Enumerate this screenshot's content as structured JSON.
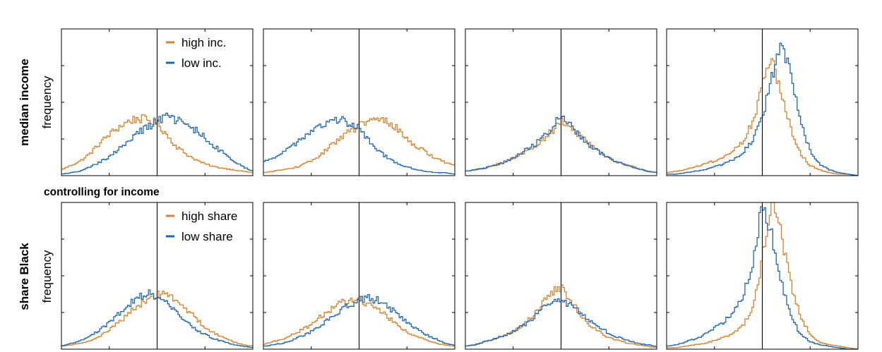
{
  "figure": {
    "row_labels": [
      "median income",
      "share Black"
    ],
    "ylabel": "frequency",
    "section_label": "controlling for income"
  },
  "colors": {
    "orange": "#D9822B",
    "blue": "#1F66B5",
    "axis": "#000000"
  },
  "chart_data": [
    {
      "type": "line",
      "title": "",
      "xlabel": "",
      "ylabel": "frequency",
      "row_label": "median income",
      "legend": {
        "placement": "top-right",
        "entries": [
          "high inc.",
          "low inc."
        ]
      },
      "xlim": [
        0,
        1
      ],
      "ylim": [
        0,
        1
      ],
      "vline": 0.5,
      "grid": false,
      "x": [
        0,
        0.05,
        0.1,
        0.15,
        0.2,
        0.25,
        0.3,
        0.35,
        0.4,
        0.45,
        0.5,
        0.55,
        0.6,
        0.65,
        0.7,
        0.75,
        0.8,
        0.85,
        0.9,
        0.95,
        1
      ],
      "series": [
        {
          "name": "high inc.",
          "color": "orange",
          "values": [
            0.04,
            0.07,
            0.1,
            0.15,
            0.22,
            0.28,
            0.33,
            0.37,
            0.39,
            0.38,
            0.36,
            0.28,
            0.2,
            0.15,
            0.11,
            0.08,
            0.06,
            0.05,
            0.04,
            0.03,
            0.02
          ]
        },
        {
          "name": "low inc.",
          "color": "blue",
          "values": [
            0.01,
            0.02,
            0.03,
            0.06,
            0.09,
            0.13,
            0.18,
            0.24,
            0.29,
            0.33,
            0.37,
            0.4,
            0.38,
            0.35,
            0.31,
            0.26,
            0.2,
            0.15,
            0.1,
            0.06,
            0.03
          ]
        }
      ]
    },
    {
      "type": "line",
      "title": "",
      "xlabel": "",
      "ylabel": "",
      "row_label": "median income",
      "xlim": [
        0,
        1
      ],
      "ylim": [
        0,
        1
      ],
      "vline": 0.5,
      "grid": false,
      "x": [
        0,
        0.05,
        0.1,
        0.15,
        0.2,
        0.25,
        0.3,
        0.35,
        0.4,
        0.45,
        0.5,
        0.55,
        0.6,
        0.65,
        0.7,
        0.75,
        0.8,
        0.85,
        0.9,
        0.95,
        1
      ],
      "series": [
        {
          "name": "high inc.",
          "color": "orange",
          "values": [
            0.02,
            0.03,
            0.04,
            0.05,
            0.07,
            0.1,
            0.14,
            0.2,
            0.26,
            0.3,
            0.34,
            0.37,
            0.38,
            0.37,
            0.32,
            0.25,
            0.2,
            0.16,
            0.12,
            0.09,
            0.07
          ]
        },
        {
          "name": "low inc.",
          "color": "blue",
          "values": [
            0.09,
            0.12,
            0.16,
            0.2,
            0.25,
            0.3,
            0.34,
            0.37,
            0.38,
            0.36,
            0.33,
            0.24,
            0.17,
            0.12,
            0.08,
            0.06,
            0.04,
            0.03,
            0.02,
            0.02,
            0.01
          ]
        }
      ]
    },
    {
      "type": "line",
      "title": "",
      "xlabel": "",
      "ylabel": "",
      "row_label": "median income",
      "xlim": [
        0,
        1
      ],
      "ylim": [
        0,
        1
      ],
      "vline": 0.5,
      "grid": false,
      "x": [
        0,
        0.05,
        0.1,
        0.15,
        0.2,
        0.25,
        0.3,
        0.35,
        0.4,
        0.45,
        0.5,
        0.55,
        0.6,
        0.65,
        0.7,
        0.75,
        0.8,
        0.85,
        0.9,
        0.95,
        1
      ],
      "series": [
        {
          "name": "high inc.",
          "color": "orange",
          "values": [
            0.03,
            0.04,
            0.05,
            0.07,
            0.09,
            0.12,
            0.15,
            0.19,
            0.24,
            0.3,
            0.37,
            0.33,
            0.27,
            0.21,
            0.16,
            0.12,
            0.09,
            0.07,
            0.05,
            0.03,
            0.02
          ]
        },
        {
          "name": "low inc.",
          "color": "blue",
          "values": [
            0.03,
            0.04,
            0.05,
            0.07,
            0.09,
            0.12,
            0.16,
            0.2,
            0.25,
            0.32,
            0.41,
            0.34,
            0.27,
            0.21,
            0.16,
            0.12,
            0.09,
            0.07,
            0.05,
            0.03,
            0.02
          ]
        }
      ]
    },
    {
      "type": "line",
      "title": "",
      "xlabel": "",
      "ylabel": "",
      "row_label": "median income",
      "xlim": [
        0,
        1
      ],
      "ylim": [
        0,
        1
      ],
      "vline": 0.5,
      "grid": false,
      "x": [
        0,
        0.05,
        0.1,
        0.15,
        0.2,
        0.25,
        0.3,
        0.35,
        0.4,
        0.45,
        0.5,
        0.55,
        0.6,
        0.65,
        0.7,
        0.75,
        0.8,
        0.85,
        0.9,
        0.95,
        1
      ],
      "series": [
        {
          "name": "high inc.",
          "color": "orange",
          "values": [
            0.02,
            0.03,
            0.04,
            0.06,
            0.08,
            0.1,
            0.13,
            0.17,
            0.24,
            0.37,
            0.6,
            0.79,
            0.58,
            0.32,
            0.15,
            0.07,
            0.04,
            0.02,
            0.01,
            0.01,
            0.0
          ]
        },
        {
          "name": "low inc.",
          "color": "blue",
          "values": [
            0.01,
            0.01,
            0.02,
            0.03,
            0.04,
            0.06,
            0.08,
            0.11,
            0.16,
            0.24,
            0.39,
            0.66,
            0.91,
            0.67,
            0.36,
            0.17,
            0.08,
            0.04,
            0.02,
            0.01,
            0.0
          ]
        }
      ]
    },
    {
      "type": "line",
      "title": "",
      "xlabel": "",
      "ylabel": "frequency",
      "row_label": "share Black",
      "legend": {
        "placement": "top-right",
        "entries": [
          "high share",
          "low share"
        ]
      },
      "xlim": [
        0,
        1
      ],
      "ylim": [
        0,
        1
      ],
      "vline": 0.5,
      "grid": false,
      "x": [
        0,
        0.05,
        0.1,
        0.15,
        0.2,
        0.25,
        0.3,
        0.35,
        0.4,
        0.45,
        0.5,
        0.55,
        0.6,
        0.65,
        0.7,
        0.75,
        0.8,
        0.85,
        0.9,
        0.95,
        1
      ],
      "series": [
        {
          "name": "high share",
          "color": "orange",
          "values": [
            0.02,
            0.03,
            0.04,
            0.06,
            0.09,
            0.13,
            0.18,
            0.24,
            0.3,
            0.34,
            0.37,
            0.38,
            0.34,
            0.28,
            0.21,
            0.15,
            0.11,
            0.08,
            0.05,
            0.03,
            0.02
          ]
        },
        {
          "name": "low share",
          "color": "blue",
          "values": [
            0.02,
            0.04,
            0.06,
            0.09,
            0.13,
            0.18,
            0.24,
            0.3,
            0.35,
            0.38,
            0.36,
            0.31,
            0.25,
            0.19,
            0.14,
            0.1,
            0.07,
            0.05,
            0.03,
            0.02,
            0.01
          ]
        }
      ]
    },
    {
      "type": "line",
      "title": "",
      "xlabel": "",
      "ylabel": "",
      "row_label": "share Black",
      "xlim": [
        0,
        1
      ],
      "ylim": [
        0,
        1
      ],
      "vline": 0.5,
      "grid": false,
      "x": [
        0,
        0.05,
        0.1,
        0.15,
        0.2,
        0.25,
        0.3,
        0.35,
        0.4,
        0.45,
        0.5,
        0.55,
        0.6,
        0.65,
        0.7,
        0.75,
        0.8,
        0.85,
        0.9,
        0.95,
        1
      ],
      "series": [
        {
          "name": "high share",
          "color": "orange",
          "values": [
            0.03,
            0.05,
            0.07,
            0.1,
            0.13,
            0.17,
            0.22,
            0.27,
            0.31,
            0.33,
            0.34,
            0.31,
            0.27,
            0.22,
            0.17,
            0.12,
            0.09,
            0.06,
            0.04,
            0.03,
            0.02
          ]
        },
        {
          "name": "low share",
          "color": "blue",
          "values": [
            0.02,
            0.03,
            0.04,
            0.06,
            0.09,
            0.12,
            0.16,
            0.21,
            0.26,
            0.3,
            0.33,
            0.35,
            0.33,
            0.29,
            0.24,
            0.19,
            0.14,
            0.1,
            0.07,
            0.04,
            0.03
          ]
        }
      ]
    },
    {
      "type": "line",
      "title": "",
      "xlabel": "",
      "ylabel": "",
      "row_label": "share Black",
      "xlim": [
        0,
        1
      ],
      "ylim": [
        0,
        1
      ],
      "vline": 0.5,
      "grid": false,
      "x": [
        0,
        0.05,
        0.1,
        0.15,
        0.2,
        0.25,
        0.3,
        0.35,
        0.4,
        0.45,
        0.5,
        0.55,
        0.6,
        0.65,
        0.7,
        0.75,
        0.8,
        0.85,
        0.9,
        0.95,
        1
      ],
      "series": [
        {
          "name": "high share",
          "color": "orange",
          "values": [
            0.02,
            0.03,
            0.05,
            0.07,
            0.09,
            0.12,
            0.16,
            0.22,
            0.3,
            0.39,
            0.42,
            0.33,
            0.24,
            0.17,
            0.12,
            0.08,
            0.06,
            0.04,
            0.03,
            0.02,
            0.01
          ]
        },
        {
          "name": "low share",
          "color": "blue",
          "values": [
            0.02,
            0.03,
            0.05,
            0.07,
            0.09,
            0.12,
            0.16,
            0.21,
            0.27,
            0.32,
            0.34,
            0.3,
            0.25,
            0.2,
            0.15,
            0.11,
            0.08,
            0.06,
            0.04,
            0.03,
            0.02
          ]
        }
      ]
    },
    {
      "type": "line",
      "title": "",
      "xlabel": "",
      "ylabel": "",
      "row_label": "share Black",
      "xlim": [
        0,
        1
      ],
      "ylim": [
        0,
        1
      ],
      "vline": 0.5,
      "grid": false,
      "x": [
        0,
        0.05,
        0.1,
        0.15,
        0.2,
        0.25,
        0.3,
        0.35,
        0.4,
        0.45,
        0.5,
        0.55,
        0.6,
        0.65,
        0.7,
        0.75,
        0.8,
        0.85,
        0.9,
        0.95,
        1
      ],
      "series": [
        {
          "name": "high share",
          "color": "orange",
          "values": [
            0.01,
            0.01,
            0.02,
            0.03,
            0.04,
            0.06,
            0.08,
            0.11,
            0.16,
            0.28,
            0.62,
            1.0,
            0.78,
            0.45,
            0.22,
            0.1,
            0.05,
            0.03,
            0.02,
            0.01,
            0.0
          ]
        },
        {
          "name": "low share",
          "color": "blue",
          "values": [
            0.02,
            0.03,
            0.05,
            0.07,
            0.1,
            0.14,
            0.19,
            0.26,
            0.37,
            0.57,
            0.98,
            0.77,
            0.45,
            0.22,
            0.1,
            0.05,
            0.03,
            0.02,
            0.01,
            0.0,
            0.0
          ]
        }
      ]
    }
  ]
}
